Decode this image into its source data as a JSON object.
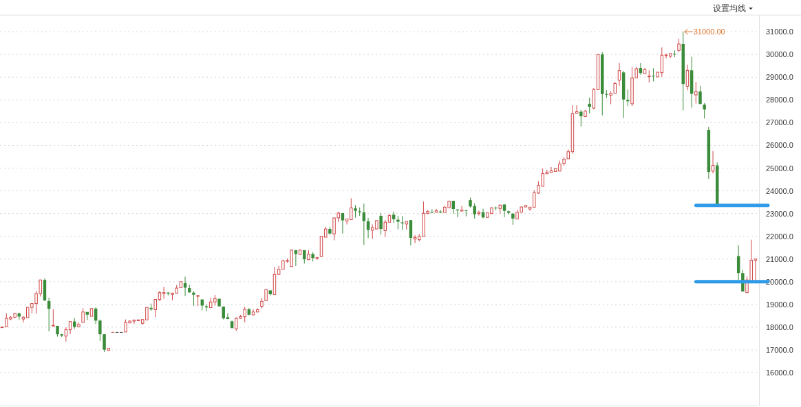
{
  "chart_data": {
    "type": "candlestick",
    "categories": [
      null,
      null,
      null,
      null,
      null,
      null,
      null,
      null,
      null,
      null,
      null,
      null,
      null,
      null,
      null,
      null,
      null,
      null,
      null,
      null,
      null,
      null,
      null,
      null,
      null,
      null,
      null,
      null,
      null,
      null,
      null,
      null,
      null,
      null,
      null,
      null,
      null,
      null,
      null,
      null,
      null,
      null,
      null,
      null,
      null,
      null,
      null,
      null,
      null,
      null,
      null,
      null,
      null,
      null,
      null,
      null,
      null,
      null,
      null,
      null,
      null,
      null,
      null,
      null,
      null,
      null,
      null,
      null,
      null,
      null,
      null,
      null,
      null,
      null,
      null,
      null,
      null,
      null,
      null,
      null,
      null,
      null,
      null,
      null,
      null,
      null,
      null,
      null,
      null,
      null,
      null,
      null,
      null,
      null,
      null,
      null,
      null,
      null,
      null,
      null,
      null,
      null,
      null,
      null,
      null,
      null,
      null,
      null,
      null,
      null,
      null,
      null,
      null,
      null,
      null,
      null,
      null,
      null,
      null,
      null,
      null,
      null,
      null,
      null,
      null,
      null,
      null,
      null,
      null,
      null,
      null,
      null,
      null,
      null,
      null,
      null,
      null,
      null,
      null,
      null,
      null,
      null,
      null,
      null,
      null,
      null,
      null,
      null,
      null,
      null,
      null,
      null,
      null,
      null,
      null,
      null,
      null,
      null,
      null,
      null,
      null,
      null,
      null,
      null,
      null,
      null,
      null,
      null,
      null,
      null,
      null,
      null,
      null,
      null,
      null,
      null,
      null,
      null
    ],
    "ohlc": [
      [
        17990,
        18010,
        17970,
        18010
      ],
      [
        18020,
        18610,
        18020,
        18390
      ],
      [
        18360,
        18490,
        18310,
        18440
      ],
      [
        18440,
        18640,
        18390,
        18600
      ],
      [
        18610,
        18640,
        18320,
        18470
      ],
      [
        18360,
        18490,
        18210,
        18440
      ],
      [
        18420,
        18880,
        18420,
        18870
      ],
      [
        18870,
        19060,
        18610,
        19040
      ],
      [
        19040,
        19590,
        18590,
        19480
      ],
      [
        19480,
        20080,
        19350,
        20080
      ],
      [
        20080,
        20150,
        19150,
        19180
      ],
      [
        19150,
        19300,
        17820,
        18810
      ],
      [
        18060,
        18790,
        18060,
        18080
      ],
      [
        18060,
        18060,
        17590,
        17690
      ],
      [
        17690,
        17710,
        17570,
        17630
      ],
      [
        17610,
        17990,
        17370,
        17890
      ],
      [
        17890,
        18270,
        17690,
        18250
      ],
      [
        18250,
        18400,
        17930,
        18010
      ],
      [
        18020,
        18210,
        18020,
        18120
      ],
      [
        18210,
        18840,
        18210,
        18670
      ],
      [
        18670,
        18670,
        18310,
        18550
      ],
      [
        18480,
        18840,
        18480,
        18820
      ],
      [
        18820,
        18880,
        18140,
        18290
      ],
      [
        18290,
        18340,
        17390,
        17690
      ],
      [
        17690,
        17690,
        16910,
        17010
      ],
      [
        16980,
        17090,
        16970,
        17070
      ],
      [
        17790,
        17790,
        17790,
        17790
      ],
      [
        17790,
        17790,
        17790,
        17790
      ],
      [
        17790,
        17790,
        17790,
        17790
      ],
      [
        17790,
        18340,
        17790,
        18210
      ],
      [
        18190,
        18300,
        18170,
        18270
      ],
      [
        18270,
        18340,
        18140,
        18310
      ],
      [
        18300,
        18340,
        18270,
        18320
      ],
      [
        18170,
        18340,
        18110,
        18340
      ],
      [
        18320,
        18870,
        18320,
        18870
      ],
      [
        18850,
        19040,
        18720,
        18790
      ],
      [
        18770,
        19250,
        18440,
        19220
      ],
      [
        19220,
        19600,
        19150,
        19520
      ],
      [
        19500,
        19780,
        19250,
        19520
      ],
      [
        19520,
        19550,
        19400,
        19480
      ],
      [
        19440,
        19520,
        19180,
        19500
      ],
      [
        19500,
        19850,
        19500,
        19720
      ],
      [
        19740,
        20000,
        19740,
        20000
      ],
      [
        19940,
        20220,
        19370,
        19740
      ],
      [
        19720,
        19870,
        19530,
        19530
      ],
      [
        19520,
        19580,
        18940,
        19430
      ],
      [
        19370,
        19420,
        18930,
        19390
      ],
      [
        19220,
        19220,
        18740,
        18950
      ],
      [
        18920,
        19000,
        18710,
        18870
      ],
      [
        18860,
        19300,
        18860,
        19110
      ],
      [
        19110,
        19420,
        18950,
        19260
      ],
      [
        19250,
        19250,
        18900,
        18920
      ],
      [
        18910,
        18910,
        18340,
        18390
      ],
      [
        18440,
        18610,
        18360,
        18360
      ],
      [
        18260,
        18290,
        17960,
        17960
      ],
      [
        17930,
        18440,
        17840,
        18390
      ],
      [
        18390,
        18540,
        18370,
        18470
      ],
      [
        18460,
        18890,
        18220,
        18780
      ],
      [
        18790,
        18840,
        18520,
        18550
      ],
      [
        18540,
        18790,
        18540,
        18670
      ],
      [
        18670,
        18820,
        18650,
        18770
      ],
      [
        18920,
        19290,
        18820,
        19140
      ],
      [
        19170,
        19670,
        19170,
        19650
      ],
      [
        19620,
        19620,
        19400,
        19450
      ],
      [
        19440,
        20650,
        19440,
        20320
      ],
      [
        20320,
        20700,
        20320,
        20550
      ],
      [
        20550,
        20970,
        20550,
        20920
      ],
      [
        20910,
        21020,
        20840,
        20930
      ],
      [
        20670,
        21420,
        20670,
        21390
      ],
      [
        21390,
        21390,
        20690,
        21220
      ],
      [
        21200,
        21420,
        21200,
        21390
      ],
      [
        21390,
        21390,
        20800,
        20990
      ],
      [
        20970,
        21390,
        20970,
        21210
      ],
      [
        21220,
        21300,
        20890,
        21040
      ],
      [
        21030,
        21100,
        20970,
        21060
      ],
      [
        21110,
        22020,
        21110,
        22000
      ],
      [
        21960,
        22420,
        21960,
        22320
      ],
      [
        22320,
        22420,
        22070,
        22120
      ],
      [
        22100,
        22810,
        21820,
        22810
      ],
      [
        22810,
        23080,
        22620,
        23020
      ],
      [
        23020,
        23020,
        22120,
        22700
      ],
      [
        22670,
        22760,
        22520,
        22760
      ],
      [
        22730,
        23670,
        22730,
        23250
      ],
      [
        23230,
        23370,
        22820,
        23120
      ],
      [
        23100,
        23270,
        22900,
        23060
      ],
      [
        23050,
        23440,
        21620,
        22670
      ],
      [
        22660,
        22810,
        21920,
        22280
      ],
      [
        22270,
        22520,
        21890,
        22380
      ],
      [
        22320,
        22690,
        22320,
        22690
      ],
      [
        22900,
        23020,
        22070,
        22320
      ],
      [
        22250,
        22720,
        21970,
        22620
      ],
      [
        22620,
        22980,
        22620,
        22910
      ],
      [
        22950,
        23090,
        22590,
        22750
      ],
      [
        22730,
        22890,
        22300,
        22640
      ],
      [
        22610,
        22890,
        22280,
        22570
      ],
      [
        22540,
        22650,
        22300,
        22650
      ],
      [
        22710,
        22710,
        21600,
        21930
      ],
      [
        21880,
        22050,
        21700,
        21950
      ],
      [
        21850,
        22100,
        21780,
        22000
      ],
      [
        21990,
        23530,
        21990,
        23010
      ],
      [
        23010,
        23160,
        22970,
        23090
      ],
      [
        23070,
        23190,
        23010,
        23050
      ],
      [
        23060,
        23210,
        23040,
        23120
      ],
      [
        23090,
        23160,
        23010,
        23050
      ],
      [
        23050,
        23340,
        23050,
        23280
      ],
      [
        23260,
        23570,
        23260,
        23540
      ],
      [
        23560,
        23560,
        22990,
        23200
      ],
      [
        23180,
        23180,
        22840,
        23140
      ],
      [
        23110,
        23340,
        23110,
        23150
      ],
      [
        23150,
        23150,
        22880,
        23130
      ],
      [
        23590,
        23700,
        23270,
        23310
      ],
      [
        23330,
        23450,
        22780,
        22970
      ],
      [
        23000,
        23130,
        22910,
        23060
      ],
      [
        23060,
        23210,
        22790,
        22830
      ],
      [
        22830,
        23030,
        22830,
        23030
      ],
      [
        23000,
        23280,
        23000,
        23250
      ],
      [
        23260,
        23310,
        23140,
        23250
      ],
      [
        23220,
        23410,
        23000,
        23370
      ],
      [
        23400,
        23400,
        22840,
        23120
      ],
      [
        23100,
        23130,
        22950,
        23030
      ],
      [
        23000,
        23000,
        22510,
        22780
      ],
      [
        22760,
        23160,
        22760,
        23060
      ],
      [
        23060,
        23310,
        23060,
        23290
      ],
      [
        23290,
        23360,
        23290,
        23360
      ],
      [
        23200,
        23280,
        23130,
        23280
      ],
      [
        23280,
        24020,
        23280,
        23920
      ],
      [
        23900,
        24420,
        23870,
        24240
      ],
      [
        24200,
        24980,
        24200,
        24760
      ],
      [
        24750,
        24930,
        24750,
        24820
      ],
      [
        24810,
        25050,
        24810,
        24880
      ],
      [
        24850,
        24980,
        24850,
        24980
      ],
      [
        24870,
        25330,
        24870,
        25180
      ],
      [
        25210,
        25480,
        25110,
        25390
      ],
      [
        25410,
        25820,
        25410,
        25720
      ],
      [
        25720,
        27760,
        25640,
        27390
      ],
      [
        27410,
        27760,
        27390,
        27480
      ],
      [
        27480,
        27560,
        26830,
        27280
      ],
      [
        27270,
        27560,
        27270,
        27510
      ],
      [
        27830,
        28100,
        27410,
        27690
      ],
      [
        27640,
        28520,
        27580,
        28460
      ],
      [
        28450,
        30000,
        28450,
        30000
      ],
      [
        30000,
        30100,
        27320,
        28260
      ],
      [
        28260,
        28430,
        28080,
        28240
      ],
      [
        28210,
        28380,
        27810,
        28290
      ],
      [
        28290,
        28790,
        28290,
        28720
      ],
      [
        28870,
        29620,
        28620,
        29290
      ],
      [
        29210,
        29270,
        27200,
        28020
      ],
      [
        28000,
        28460,
        27730,
        27940
      ],
      [
        27830,
        29450,
        27730,
        28970
      ],
      [
        28970,
        29450,
        28970,
        29370
      ],
      [
        29400,
        29620,
        29110,
        29180
      ],
      [
        29150,
        29410,
        29150,
        29330
      ],
      [
        29020,
        29300,
        28770,
        29050
      ],
      [
        29060,
        29390,
        28810,
        29050
      ],
      [
        29010,
        29220,
        29010,
        29220
      ],
      [
        29200,
        30310,
        29020,
        29970
      ],
      [
        29960,
        30030,
        29820,
        29980
      ],
      [
        29920,
        30040,
        29850,
        30040
      ],
      [
        30030,
        30180,
        29880,
        30000
      ],
      [
        30180,
        30680,
        30110,
        30460
      ],
      [
        30460,
        31000,
        27540,
        28700
      ],
      [
        28600,
        29550,
        28420,
        29300
      ],
      [
        29300,
        29900,
        27660,
        28270
      ],
      [
        28220,
        28790,
        27840,
        28360
      ],
      [
        28370,
        28620,
        27820,
        27820
      ],
      [
        27790,
        27860,
        27180,
        27580
      ],
      [
        26680,
        26810,
        24530,
        24830
      ],
      [
        24870,
        25750,
        24770,
        25120
      ],
      [
        25120,
        25250,
        23390,
        23390
      ],
      null,
      null,
      null,
      null,
      [
        21130,
        21610,
        20080,
        20380
      ],
      [
        20380,
        20530,
        19570,
        19570
      ],
      [
        19520,
        20230,
        19520,
        20080
      ],
      [
        20030,
        21850,
        20030,
        20950
      ],
      [
        20950,
        21000,
        20030,
        21000
      ]
    ],
    "colors": [
      "#d04848",
      "#d04848",
      "#d04848",
      "#d04848",
      "#3a8c3a",
      "#d04848",
      "#d04848",
      "#d04848",
      "#d04848",
      "#d04848",
      "#3a8c3a",
      "#3a8c3a",
      "#d04848",
      "#3a8c3a",
      "#3a8c3a",
      "#d04848",
      "#d04848",
      "#3a8c3a",
      "#d04848",
      "#d04848",
      "#3a8c3a",
      "#d04848",
      "#3a8c3a",
      "#3a8c3a",
      "#3a8c3a",
      "#d04848",
      "#d04848",
      "#333333",
      "#333333",
      "#d04848",
      "#d04848",
      "#d04848",
      "#d04848",
      "#d04848",
      "#d04848",
      "#3a8c3a",
      "#d04848",
      "#d04848",
      "#d04848",
      "#3a8c3a",
      "#d04848",
      "#d04848",
      "#d04848",
      "#3a8c3a",
      "#3a8c3a",
      "#3a8c3a",
      "#d04848",
      "#3a8c3a",
      "#3a8c3a",
      "#d04848",
      "#d04848",
      "#3a8c3a",
      "#3a8c3a",
      "#3a8c3a",
      "#3a8c3a",
      "#d04848",
      "#d04848",
      "#d04848",
      "#3a8c3a",
      "#d04848",
      "#d04848",
      "#d04848",
      "#d04848",
      "#3a8c3a",
      "#d04848",
      "#d04848",
      "#d04848",
      "#d04848",
      "#d04848",
      "#3a8c3a",
      "#d04848",
      "#3a8c3a",
      "#d04848",
      "#3a8c3a",
      "#d04848",
      "#d04848",
      "#d04848",
      "#3a8c3a",
      "#d04848",
      "#d04848",
      "#3a8c3a",
      "#d04848",
      "#d04848",
      "#3a8c3a",
      "#3a8c3a",
      "#3a8c3a",
      "#3a8c3a",
      "#d04848",
      "#d04848",
      "#3a8c3a",
      "#d04848",
      "#d04848",
      "#3a8c3a",
      "#3a8c3a",
      "#3a8c3a",
      "#d04848",
      "#3a8c3a",
      "#d04848",
      "#d04848",
      "#d04848",
      "#d04848",
      "#3a8c3a",
      "#d04848",
      "#3a8c3a",
      "#d04848",
      "#d04848",
      "#3a8c3a",
      "#3a8c3a",
      "#d04848",
      "#3a8c3a",
      "#3a8c3a",
      "#3a8c3a",
      "#d04848",
      "#3a8c3a",
      "#d04848",
      "#d04848",
      "#3a8c3a",
      "#d04848",
      "#3a8c3a",
      "#3a8c3a",
      "#3a8c3a",
      "#d04848",
      "#d04848",
      "#d04848",
      "#d04848",
      "#d04848",
      "#d04848",
      "#d04848",
      "#d04848",
      "#d04848",
      "#d04848",
      "#d04848",
      "#d04848",
      "#d04848",
      "#d04848",
      "#d04848",
      "#3a8c3a",
      "#d04848",
      "#3a8c3a",
      "#d04848",
      "#d04848",
      "#3a8c3a",
      "#3a8c3a",
      "#d04848",
      "#d04848",
      "#d04848",
      "#3a8c3a",
      "#3a8c3a",
      "#d04848",
      "#d04848",
      "#3a8c3a",
      "#d04848",
      "#d04848",
      "#3a8c3a",
      "#d04848",
      "#d04848",
      "#d04848",
      "#d04848",
      "#3a8c3a",
      "#d04848",
      "#3a8c3a",
      "#d04848",
      "#3a8c3a",
      "#d04848",
      "#3a8c3a",
      "#3a8c3a",
      "#3a8c3a",
      "#d04848",
      "#3a8c3a",
      null,
      null,
      null,
      null,
      "#3a8c3a",
      "#3a8c3a",
      "#d04848",
      "#d04848",
      "#d04848"
    ],
    "ylim": [
      14550,
      31730
    ],
    "yticks": [
      {
        "value": 16000,
        "label": "16000.0"
      },
      {
        "value": 17000,
        "label": "17000.0"
      },
      {
        "value": 18000,
        "label": "18000.0"
      },
      {
        "value": 19000,
        "label": "19000.0"
      },
      {
        "value": 20000,
        "label": "20000.0"
      },
      {
        "value": 21000,
        "label": "21000.0"
      },
      {
        "value": 22000,
        "label": "22000.0"
      },
      {
        "value": 23000,
        "label": "23000.0"
      },
      {
        "value": 24000,
        "label": "24000.0"
      },
      {
        "value": 25000,
        "label": "25000.0"
      },
      {
        "value": 26000,
        "label": "26000.0"
      },
      {
        "value": 27000,
        "label": "27000.0"
      },
      {
        "value": 28000,
        "label": "28000.0"
      },
      {
        "value": 29000,
        "label": "29000.0"
      },
      {
        "value": 30000,
        "label": "30000.0"
      },
      {
        "value": 31000,
        "label": "31000.0"
      }
    ],
    "grid": "y",
    "tick_labels": "y",
    "ref_lines": [
      {
        "axis": "y",
        "value": 23360,
        "color": "#2f9be8"
      },
      {
        "axis": "y",
        "value": 20000,
        "color": "#2f9be8"
      }
    ],
    "annotations": [
      "31000.00",
      "设置均线"
    ]
  }
}
